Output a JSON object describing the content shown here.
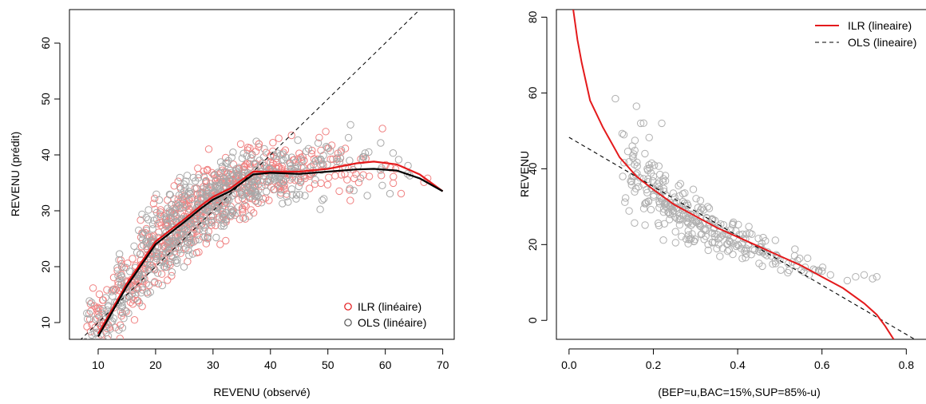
{
  "chart_data": [
    {
      "type": "scatter",
      "xlabel": "REVENU (observé)",
      "ylabel": "REVENU (prédit)",
      "xlim": [
        5,
        72
      ],
      "ylim": [
        7,
        66
      ],
      "xticks": [
        10,
        20,
        30,
        40,
        50,
        60,
        70
      ],
      "yticks": [
        10,
        20,
        30,
        40,
        50,
        60
      ],
      "legend_position": "bottom-right",
      "grid": false,
      "series": [
        {
          "name": "ILR (linéaire)",
          "kind": "points",
          "color": "#f08080",
          "curve": {
            "x": [
              10,
              15,
              20,
              25,
              28,
              30,
              33,
              37,
              40,
              45,
              50,
              55,
              58,
              62,
              66,
              70
            ],
            "y": [
              8,
              17,
              24.5,
              28.5,
              31,
              32.5,
              34,
              37,
              37,
              37,
              37.5,
              38.5,
              38.8,
              38.3,
              36.5,
              33.5
            ],
            "color": "#e41a1c"
          }
        },
        {
          "name": "OLS (linéaire)",
          "kind": "points",
          "color": "#a8a8a8",
          "curve": {
            "x": [
              10,
              15,
              20,
              25,
              28,
              30,
              33,
              37,
              40,
              45,
              50,
              55,
              58,
              62,
              66,
              70
            ],
            "y": [
              7.5,
              16.5,
              24,
              28,
              30.5,
              32,
              33.5,
              36.5,
              36.8,
              36.6,
              37,
              37.4,
              37.5,
              37.2,
              35.8,
              33.5
            ],
            "color": "#000000"
          }
        }
      ],
      "reference_line": {
        "slope": 1,
        "intercept": 0,
        "style": "dashed",
        "color": "#000000"
      },
      "point_clouds": [
        {
          "x_center": [
            10,
            15,
            20,
            25,
            30,
            35,
            40,
            45,
            50,
            55,
            60,
            65
          ],
          "y_center": [
            10,
            16.5,
            24,
            28.5,
            32,
            35,
            36.5,
            37,
            37.5,
            37.5,
            38,
            36
          ],
          "y_spread": [
            3,
            4,
            4,
            4,
            4,
            3.5,
            3,
            3,
            3,
            3,
            3,
            2.5
          ],
          "counts": [
            70,
            120,
            180,
            220,
            220,
            180,
            120,
            80,
            50,
            30,
            15,
            6
          ]
        }
      ]
    },
    {
      "type": "scatter",
      "xlabel": "(BEP=u,BAC=15%,SUP=85%-u)",
      "ylabel": "REVENU",
      "xlim": [
        -0.03,
        0.86
      ],
      "ylim": [
        -5,
        82
      ],
      "xticks": [
        0.0,
        0.2,
        0.4,
        0.6,
        0.8
      ],
      "xtick_labels": [
        "0.0",
        "0.2",
        "0.4",
        "0.6",
        "0.8"
      ],
      "yticks": [
        0,
        20,
        40,
        60,
        80
      ],
      "legend_position": "top-right",
      "grid": false,
      "series": [
        {
          "name": "ILR (lineaire)",
          "kind": "line",
          "style": "solid",
          "color": "#e41a1c",
          "x": [
            0.01,
            0.02,
            0.03,
            0.05,
            0.08,
            0.12,
            0.16,
            0.2,
            0.25,
            0.3,
            0.35,
            0.4,
            0.45,
            0.5,
            0.55,
            0.6,
            0.65,
            0.7,
            0.73,
            0.75,
            0.77
          ],
          "y": [
            82,
            74,
            68,
            58,
            51,
            43,
            38,
            34.5,
            30.5,
            27.5,
            24.5,
            22,
            19.5,
            17,
            14.5,
            11.5,
            8.5,
            4.5,
            1.5,
            -1.5,
            -5
          ]
        },
        {
          "name": "OLS (lineaire)",
          "kind": "line",
          "style": "dashed",
          "color": "#000000",
          "x": [
            0.0,
            0.82
          ],
          "y": [
            48.3,
            -5
          ]
        },
        {
          "name": "",
          "kind": "points",
          "color": "#b0b0b0",
          "x": [
            0.11,
            0.13,
            0.15,
            0.16,
            0.17,
            0.18,
            0.19,
            0.2,
            0.21,
            0.22,
            0.23,
            0.24,
            0.25,
            0.26,
            0.27,
            0.28,
            0.29,
            0.3,
            0.31,
            0.32,
            0.34,
            0.36,
            0.38,
            0.4,
            0.42,
            0.44,
            0.46,
            0.48,
            0.5,
            0.52,
            0.54,
            0.56,
            0.58,
            0.6,
            0.62,
            0.66,
            0.68,
            0.7,
            0.72,
            0.73
          ],
          "y": [
            58.5,
            49,
            46,
            56.5,
            52,
            44,
            41,
            38,
            36,
            52,
            33,
            31,
            30,
            35.5,
            29,
            27,
            28,
            26,
            25,
            24,
            23,
            22,
            21,
            20,
            19,
            18.5,
            18,
            17,
            16,
            15,
            14.5,
            14,
            13.5,
            13,
            12,
            10.5,
            11.5,
            12,
            11,
            11.5
          ]
        }
      ],
      "point_cloud": {
        "x_center": [
          0.14,
          0.17,
          0.2,
          0.23,
          0.26,
          0.29,
          0.32,
          0.35,
          0.38,
          0.41,
          0.44,
          0.47,
          0.5,
          0.53,
          0.56,
          0.59
        ],
        "y_center": [
          40,
          38,
          34,
          31,
          29,
          27,
          26,
          24,
          22,
          21,
          19.5,
          18,
          16.5,
          15,
          14,
          13
        ],
        "y_spread": [
          7,
          7,
          6,
          5,
          4.5,
          4,
          4,
          3.5,
          3.5,
          3,
          3,
          3,
          2.5,
          2.5,
          2.5,
          2
        ],
        "counts": [
          16,
          22,
          28,
          30,
          30,
          28,
          24,
          20,
          18,
          16,
          12,
          10,
          8,
          6,
          5,
          4
        ]
      }
    }
  ]
}
